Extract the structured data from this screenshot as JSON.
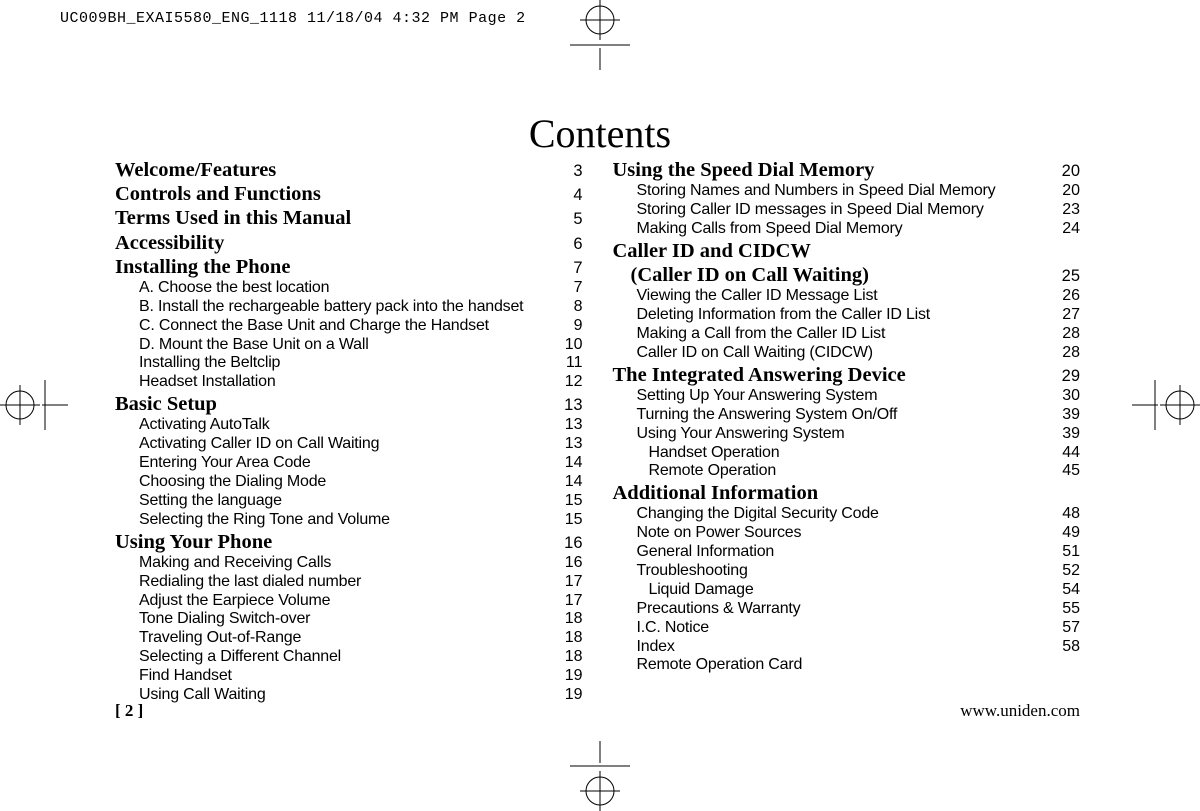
{
  "slug": "UC009BH_EXAI5580_ENG_1118  11/18/04  4:32 PM  Page 2",
  "title": "Contents",
  "footer": {
    "page_number": "[ 2 ]",
    "url": "www.uniden.com"
  },
  "left": [
    {
      "h": true,
      "label": "Welcome/Features",
      "page": "3"
    },
    {
      "h": true,
      "label": "Controls and Functions",
      "page": "4"
    },
    {
      "h": true,
      "label": "Terms Used in this Manual",
      "page": "5"
    },
    {
      "h": true,
      "label": "Accessibility",
      "page": "6"
    },
    {
      "h": true,
      "label": "Installing the Phone",
      "page": "7"
    },
    {
      "h": false,
      "label": "A. Choose the best location",
      "page": "7"
    },
    {
      "h": false,
      "label": "B. Install the rechargeable battery pack into the handset",
      "page": "8"
    },
    {
      "h": false,
      "label": "C. Connect the Base Unit and Charge the Handset",
      "page": "9"
    },
    {
      "h": false,
      "label": "D. Mount the Base Unit on a Wall",
      "page": "10"
    },
    {
      "h": false,
      "label": "Installing the Beltclip",
      "page": "11"
    },
    {
      "h": false,
      "label": "Headset Installation",
      "page": "12"
    },
    {
      "h": true,
      "label": "Basic Setup",
      "page": "13"
    },
    {
      "h": false,
      "label": "Activating AutoTalk",
      "page": "13"
    },
    {
      "h": false,
      "label": "Activating Caller ID on Call Waiting",
      "page": "13"
    },
    {
      "h": false,
      "label": "Entering Your Area Code",
      "page": "14"
    },
    {
      "h": false,
      "label": "Choosing the Dialing Mode",
      "page": "14"
    },
    {
      "h": false,
      "label": "Setting the language",
      "page": "15"
    },
    {
      "h": false,
      "label": "Selecting the Ring Tone and Volume",
      "page": "15"
    },
    {
      "h": true,
      "label": "Using Your Phone",
      "page": "16"
    },
    {
      "h": false,
      "label": "Making and Receiving Calls",
      "page": "16"
    },
    {
      "h": false,
      "label": "Redialing the last dialed number",
      "page": "17"
    },
    {
      "h": false,
      "label": "Adjust the Earpiece Volume",
      "page": "17"
    },
    {
      "h": false,
      "label": "Tone Dialing Switch-over",
      "page": "18"
    },
    {
      "h": false,
      "label": "Traveling Out-of-Range",
      "page": "18"
    },
    {
      "h": false,
      "label": "Selecting a Different Channel",
      "page": "18"
    },
    {
      "h": false,
      "label": "Find Handset",
      "page": "19"
    },
    {
      "h": false,
      "label": "Using Call Waiting",
      "page": "19"
    }
  ],
  "right": [
    {
      "h": true,
      "label": "Using the Speed Dial Memory",
      "page": "20"
    },
    {
      "h": false,
      "label": "Storing Names and Numbers in Speed Dial Memory",
      "page": "20"
    },
    {
      "h": false,
      "label": "Storing Caller ID messages in Speed Dial Memory",
      "page": "23"
    },
    {
      "h": false,
      "label": "Making Calls from Speed Dial Memory",
      "page": "24"
    },
    {
      "h": true,
      "label": "Caller ID and CIDCW",
      "page": ""
    },
    {
      "h": true,
      "indent": true,
      "label": "(Caller ID on Call Waiting)",
      "page": "25"
    },
    {
      "h": false,
      "label": "Viewing the Caller ID Message List",
      "page": "26"
    },
    {
      "h": false,
      "label": "Deleting Information from the Caller ID List",
      "page": "27"
    },
    {
      "h": false,
      "label": "Making a Call from the Caller ID List",
      "page": "28"
    },
    {
      "h": false,
      "label": "Caller ID on Call Waiting (CIDCW)",
      "page": "28"
    },
    {
      "h": true,
      "label": "The Integrated Answering Device",
      "page": "29"
    },
    {
      "h": false,
      "label": "Setting Up Your Answering System",
      "page": "30"
    },
    {
      "h": false,
      "label": "Turning the Answering System On/Off",
      "page": "39"
    },
    {
      "h": false,
      "label": "Using Your Answering System",
      "page": "39"
    },
    {
      "h": false,
      "sub2": true,
      "label": "Handset Operation",
      "page": "44"
    },
    {
      "h": false,
      "sub2": true,
      "label": "Remote Operation",
      "page": "45"
    },
    {
      "h": true,
      "label": "Additional Information",
      "page": ""
    },
    {
      "h": false,
      "label": "Changing the Digital Security Code",
      "page": "48"
    },
    {
      "h": false,
      "label": "Note on Power Sources",
      "page": "49"
    },
    {
      "h": false,
      "label": "General Information",
      "page": "51"
    },
    {
      "h": false,
      "label": "Troubleshooting",
      "page": "52"
    },
    {
      "h": false,
      "sub2": true,
      "label": "Liquid Damage",
      "page": "54"
    },
    {
      "h": false,
      "label": "Precautions & Warranty",
      "page": "55"
    },
    {
      "h": false,
      "label": "I.C. Notice",
      "page": "57"
    },
    {
      "h": false,
      "label": "Index",
      "page": "58"
    },
    {
      "h": false,
      "label": "Remote Operation Card",
      "page": ""
    }
  ]
}
